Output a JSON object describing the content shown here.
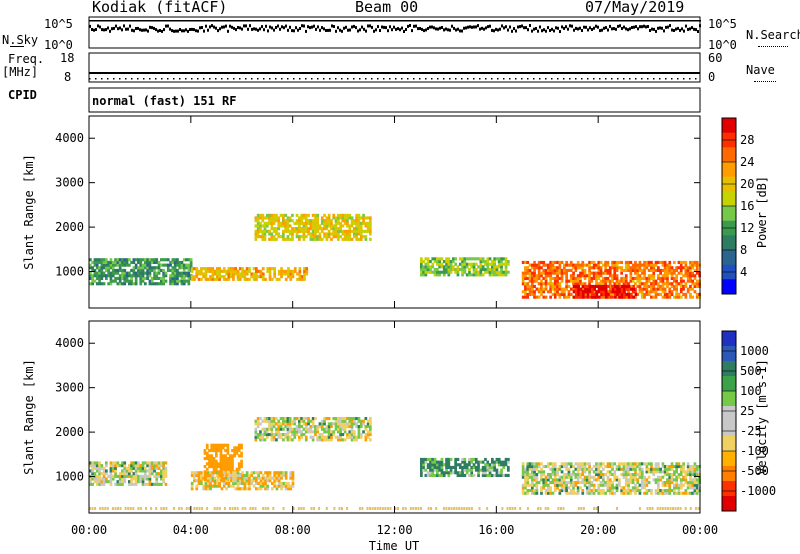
{
  "header": {
    "station": "Kodiak (fitACF)",
    "beam": "Beam 00",
    "date": "07/May/2019"
  },
  "strips": {
    "nsky_label": "N.Sky",
    "nsky_ticks": [
      "10^5",
      "10^0"
    ],
    "nsearch_label": "N.Search",
    "nsearch_ticks": [
      "10^5",
      "10^0"
    ],
    "freq_label": "Freq.",
    "freq_unit": "[MHz]",
    "freq_ticks": [
      "18",
      "8"
    ],
    "nave_label": "Nave",
    "nave_ticks": [
      "60",
      "0"
    ],
    "cpid_label": "CPID",
    "cpid_value": "normal (fast) 151 RF"
  },
  "panels": {
    "ylabel": "Slant Range [km]",
    "xlabel": "Time UT",
    "yticks": [
      "4000",
      "3000",
      "2000",
      "1000"
    ],
    "xticks": [
      "00:00",
      "04:00",
      "08:00",
      "12:00",
      "16:00",
      "20:00",
      "00:00"
    ]
  },
  "power_scale": {
    "label": "Power [dB]",
    "ticks": [
      "28",
      "24",
      "20",
      "16",
      "12",
      "8",
      "4"
    ],
    "colors": [
      "#e00000",
      "#ff2e00",
      "#ff6a00",
      "#ff9c00",
      "#e6c000",
      "#c8d200",
      "#76c848",
      "#3c9a4e",
      "#2e7d62",
      "#2c6490",
      "#2050c0",
      "#0000ff"
    ]
  },
  "velocity_scale": {
    "label": "Velocity [m s-1]",
    "ticks": [
      "1000",
      "500",
      "100",
      "25",
      "-25",
      "-100",
      "-500",
      "-1000"
    ],
    "colors": [
      "#2030c0",
      "#2c58b8",
      "#2e7d62",
      "#3ca24a",
      "#76c848",
      "#c8c8c8",
      "#c8c8c8",
      "#f0d060",
      "#ffb000",
      "#ff8000",
      "#ff3000",
      "#e00000"
    ]
  },
  "chart_data": [
    {
      "type": "heatmap",
      "title": "Power",
      "xlabel": "Time UT",
      "ylabel": "Slant Range [km]",
      "xlim": [
        0,
        24
      ],
      "ylim": [
        180,
        4500
      ],
      "colorbar": "Power [dB]",
      "clim": [
        0,
        30
      ],
      "regions": [
        {
          "t0": 0.0,
          "t1": 4.0,
          "r0": 700,
          "r1": 1300,
          "value": 10
        },
        {
          "t0": 4.0,
          "t1": 8.5,
          "r0": 800,
          "r1": 1100,
          "value": 20
        },
        {
          "t0": 6.5,
          "t1": 11.0,
          "r0": 1700,
          "r1": 2300,
          "value": 18
        },
        {
          "t0": 13.0,
          "t1": 16.5,
          "r0": 900,
          "r1": 1300,
          "value": 14
        },
        {
          "t0": 17.0,
          "t1": 24.0,
          "r0": 400,
          "r1": 1200,
          "value": 24
        },
        {
          "t0": 19.0,
          "t1": 21.5,
          "r0": 400,
          "r1": 650,
          "value": 30
        }
      ]
    },
    {
      "type": "heatmap",
      "title": "Velocity",
      "xlabel": "Time UT",
      "ylabel": "Slant Range [km]",
      "xlim": [
        0,
        24
      ],
      "ylim": [
        180,
        4500
      ],
      "colorbar": "Velocity [m s-1]",
      "clim": [
        -1000,
        1000
      ],
      "regions": [
        {
          "t0": 0.0,
          "t1": 3.0,
          "r0": 800,
          "r1": 1300,
          "value": 0
        },
        {
          "t0": 4.5,
          "t1": 6.0,
          "r0": 900,
          "r1": 1700,
          "value": -300
        },
        {
          "t0": 4.0,
          "t1": 8.0,
          "r0": 700,
          "r1": 1100,
          "value": -60
        },
        {
          "t0": 6.5,
          "t1": 11.0,
          "r0": 1800,
          "r1": 2300,
          "value": 0
        },
        {
          "t0": 13.0,
          "t1": 16.5,
          "r0": 1000,
          "r1": 1400,
          "value": 120
        },
        {
          "t0": 17.0,
          "t1": 24.0,
          "r0": 600,
          "r1": 1300,
          "value": 0
        }
      ]
    }
  ]
}
